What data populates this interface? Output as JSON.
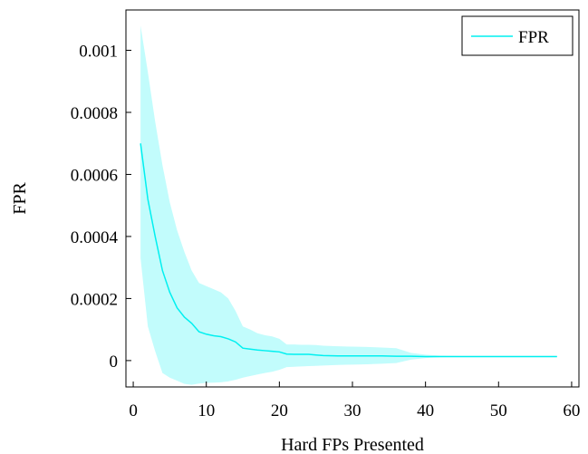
{
  "chart_data": {
    "type": "line",
    "xlabel": "Hard FPs Presented",
    "ylabel": "FPR",
    "xlim": [
      -1,
      61
    ],
    "ylim": [
      -8.5e-05,
      0.00113
    ],
    "xticks": [
      0,
      10,
      20,
      30,
      40,
      50,
      60
    ],
    "xtick_labels": [
      "0",
      "10",
      "20",
      "30",
      "40",
      "50",
      "60"
    ],
    "yticks": [
      0,
      0.0002,
      0.0004,
      0.0006,
      0.0008,
      0.001
    ],
    "ytick_labels": [
      "0",
      "0.0002",
      "0.0004",
      "0.0006",
      "0.0008",
      "0.001"
    ],
    "grid": false,
    "legend_position": "top-right",
    "series": [
      {
        "name": "FPR",
        "color": "#00f0f0",
        "band_color": "#c2fcfc",
        "x": [
          1,
          2,
          3,
          4,
          5,
          6,
          7,
          8,
          9,
          10,
          11,
          12,
          13,
          14,
          15,
          16,
          17,
          18,
          19,
          20,
          21,
          22,
          23,
          24,
          25,
          26,
          28,
          30,
          32,
          34,
          36,
          38,
          40,
          42,
          45,
          50,
          55,
          58
        ],
        "y": [
          0.0007,
          0.00052,
          0.0004,
          0.00029,
          0.00022,
          0.00017,
          0.00014,
          0.00012,
          9.3e-05,
          8.5e-05,
          8e-05,
          7.7e-05,
          7e-05,
          6e-05,
          4e-05,
          3.7e-05,
          3.4e-05,
          3.2e-05,
          3e-05,
          2.8e-05,
          2.1e-05,
          2e-05,
          2e-05,
          2e-05,
          1.8e-05,
          1.6e-05,
          1.5e-05,
          1.5e-05,
          1.5e-05,
          1.5e-05,
          1.4e-05,
          1.4e-05,
          1.3e-05,
          1.3e-05,
          1.3e-05,
          1.3e-05,
          1.3e-05,
          1.3e-05
        ],
        "upper": [
          0.00108,
          0.00093,
          0.00077,
          0.00063,
          0.00051,
          0.00042,
          0.00035,
          0.00029,
          0.00025,
          0.00024,
          0.00023,
          0.00022,
          0.0002,
          0.00016,
          0.00011,
          0.0001,
          8.8e-05,
          8.2e-05,
          7.8e-05,
          7e-05,
          5.2e-05,
          5.2e-05,
          5.1e-05,
          5.1e-05,
          5e-05,
          4.8e-05,
          4.6e-05,
          4.5e-05,
          4.4e-05,
          4.2e-05,
          4e-05,
          2.5e-05,
          1.9e-05,
          1.6e-05,
          1.5e-05,
          1.5e-05,
          1.5e-05,
          1.5e-05
        ],
        "lower": [
          0.00033,
          0.00011,
          3e-05,
          -4e-05,
          -5.5e-05,
          -6.5e-05,
          -7.5e-05,
          -7.8e-05,
          -7.4e-05,
          -7.2e-05,
          -7.1e-05,
          -7e-05,
          -6.7e-05,
          -6.2e-05,
          -5.5e-05,
          -5e-05,
          -4.5e-05,
          -4e-05,
          -3.6e-05,
          -3e-05,
          -2.1e-05,
          -2e-05,
          -1.9e-05,
          -1.8e-05,
          -1.7e-05,
          -1.6e-05,
          -1.4e-05,
          -1.3e-05,
          -1.2e-05,
          -1e-05,
          -8e-06,
          3e-06,
          8e-06,
          1.1e-05,
          1.2e-05,
          1.2e-05,
          1.2e-05,
          1.2e-05
        ]
      }
    ]
  }
}
